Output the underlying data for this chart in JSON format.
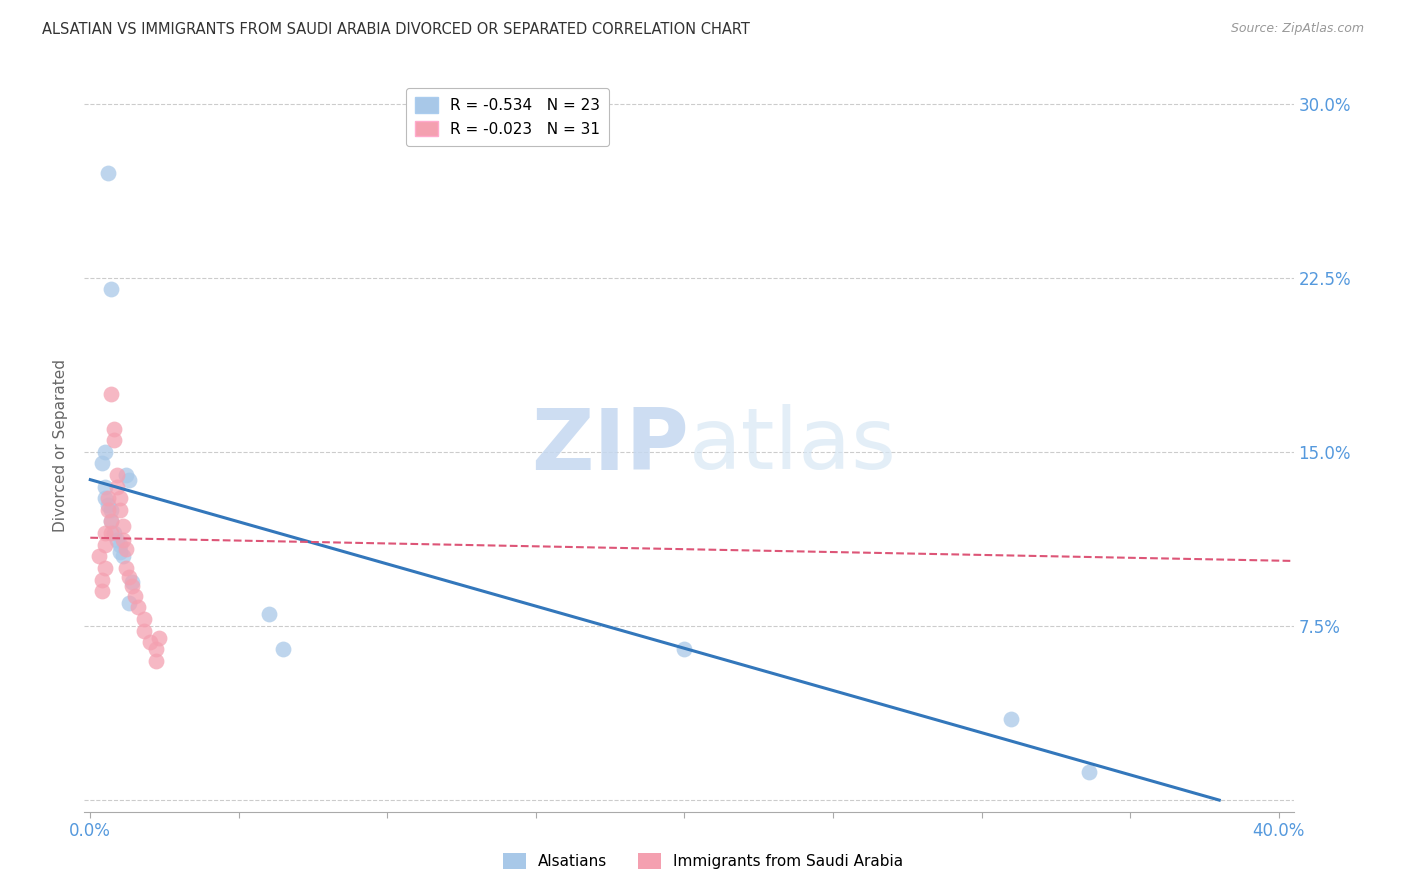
{
  "title": "ALSATIAN VS IMMIGRANTS FROM SAUDI ARABIA DIVORCED OR SEPARATED CORRELATION CHART",
  "source": "Source: ZipAtlas.com",
  "ylabel_label": "Divorced or Separated",
  "xlim": [
    -0.002,
    0.405
  ],
  "ylim": [
    -0.005,
    0.31
  ],
  "xticks": [
    0.0,
    0.05,
    0.1,
    0.15,
    0.2,
    0.25,
    0.3,
    0.35,
    0.4
  ],
  "yticks": [
    0.0,
    0.075,
    0.15,
    0.225,
    0.3
  ],
  "yticklabels_right": [
    "",
    "7.5%",
    "15.0%",
    "22.5%",
    "30.0%"
  ],
  "legend_r1": "R = -0.534",
  "legend_n1": "N = 23",
  "legend_r2": "R = -0.023",
  "legend_n2": "N = 31",
  "blue_color": "#a8c8e8",
  "pink_color": "#f4a0b0",
  "blue_line_color": "#3377bb",
  "pink_line_color": "#dd5577",
  "grid_color": "#cccccc",
  "tick_color": "#5599dd",
  "alsatian_points_x": [
    0.006,
    0.007,
    0.005,
    0.004,
    0.005,
    0.005,
    0.006,
    0.007,
    0.007,
    0.008,
    0.009,
    0.01,
    0.01,
    0.011,
    0.012,
    0.013,
    0.014,
    0.013,
    0.06,
    0.065,
    0.2,
    0.31,
    0.336
  ],
  "alsatian_points_y": [
    0.27,
    0.22,
    0.15,
    0.145,
    0.135,
    0.13,
    0.127,
    0.125,
    0.12,
    0.115,
    0.112,
    0.11,
    0.107,
    0.105,
    0.14,
    0.138,
    0.094,
    0.085,
    0.08,
    0.065,
    0.065,
    0.035,
    0.012
  ],
  "saudi_points_x": [
    0.003,
    0.004,
    0.004,
    0.005,
    0.005,
    0.005,
    0.006,
    0.006,
    0.007,
    0.007,
    0.007,
    0.008,
    0.008,
    0.009,
    0.009,
    0.01,
    0.01,
    0.011,
    0.011,
    0.012,
    0.012,
    0.013,
    0.014,
    0.015,
    0.016,
    0.018,
    0.018,
    0.02,
    0.022,
    0.022,
    0.023
  ],
  "saudi_points_y": [
    0.105,
    0.095,
    0.09,
    0.115,
    0.11,
    0.1,
    0.13,
    0.125,
    0.175,
    0.12,
    0.115,
    0.16,
    0.155,
    0.14,
    0.135,
    0.13,
    0.125,
    0.118,
    0.112,
    0.108,
    0.1,
    0.096,
    0.092,
    0.088,
    0.083,
    0.078,
    0.073,
    0.068,
    0.06,
    0.065,
    0.07
  ],
  "blue_trend_x": [
    0.0,
    0.38
  ],
  "blue_trend_y": [
    0.138,
    0.0
  ],
  "pink_trend_x": [
    0.0,
    0.405
  ],
  "pink_trend_y": [
    0.113,
    0.103
  ]
}
